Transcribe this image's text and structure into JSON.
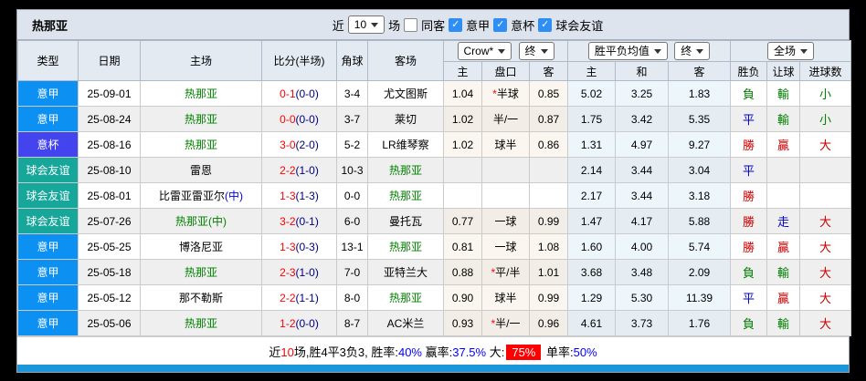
{
  "window": {
    "title": "热那亚"
  },
  "toolbar": {
    "recent_label": "近",
    "recent_value": "10",
    "matches_label": "场",
    "same_away_label": "同客",
    "same_away_checked": false,
    "filters": [
      {
        "label": "意甲",
        "checked": true
      },
      {
        "label": "意杯",
        "checked": true
      },
      {
        "label": "球会友谊",
        "checked": true
      }
    ]
  },
  "selects": {
    "bookmaker": "Crow*",
    "odds_time": "终",
    "avg_type": "胜平负均值",
    "avg_time": "终",
    "scope": "全场"
  },
  "columns": {
    "type": "类型",
    "date": "日期",
    "home": "主场",
    "score": "比分(半场)",
    "corner": "角球",
    "away": "客场",
    "o_home": "主",
    "o_line": "盘口",
    "o_away": "客",
    "avg_home": "主",
    "avg_draw": "和",
    "avg_away": "客",
    "result": "胜负",
    "handicap": "让球",
    "goals": "进球数"
  },
  "league_colors": {
    "serieA": "#0c90f2",
    "coppa": "#4444ee",
    "friendly": "#16a79a"
  },
  "result_colors": {
    "勝": "#cc0000",
    "贏": "#cc0000",
    "大": "#cc0000",
    "平": "#0000cc",
    "走": "#0000cc",
    "負": "#008000",
    "輸": "#008000",
    "小": "#008000"
  },
  "rows": [
    {
      "league": "意甲",
      "lkey": "serieA",
      "date": "25-09-01",
      "home": {
        "n": "热那亚",
        "m": "",
        "nc": "#008000",
        "mc": "#008000"
      },
      "score": {
        "ft": "0-1",
        "ht": "(0-0)"
      },
      "corner": "3-4",
      "away": {
        "n": "尤文图斯",
        "m": "",
        "nc": "#000000",
        "mc": "#000000"
      },
      "o1": "1.04",
      "line": {
        "star": true,
        "t": "半球"
      },
      "o2": "0.85",
      "a1": "5.02",
      "a2": "3.25",
      "a3": "1.83",
      "r1": "負",
      "r2": "輸",
      "r3": "小"
    },
    {
      "league": "意甲",
      "lkey": "serieA",
      "date": "25-08-24",
      "home": {
        "n": "热那亚",
        "m": "",
        "nc": "#008000",
        "mc": "#008000"
      },
      "score": {
        "ft": "0-0",
        "ht": "(0-0)"
      },
      "corner": "3-7",
      "away": {
        "n": "莱切",
        "m": "",
        "nc": "#000000",
        "mc": "#000000"
      },
      "o1": "1.02",
      "line": {
        "star": false,
        "t": "半/一"
      },
      "o2": "0.87",
      "a1": "1.75",
      "a2": "3.42",
      "a3": "5.35",
      "r1": "平",
      "r2": "輸",
      "r3": "小"
    },
    {
      "league": "意杯",
      "lkey": "coppa",
      "date": "25-08-16",
      "home": {
        "n": "热那亚",
        "m": "",
        "nc": "#008000",
        "mc": "#008000"
      },
      "score": {
        "ft": "3-0",
        "ht": "(2-0)"
      },
      "corner": "5-2",
      "away": {
        "n": "LR维琴察",
        "m": "",
        "nc": "#000000",
        "mc": "#000000"
      },
      "o1": "1.02",
      "line": {
        "star": false,
        "t": "球半"
      },
      "o2": "0.86",
      "a1": "1.31",
      "a2": "4.97",
      "a3": "9.27",
      "r1": "勝",
      "r2": "贏",
      "r3": "大"
    },
    {
      "league": "球会友谊",
      "lkey": "friendly",
      "date": "25-08-10",
      "home": {
        "n": "雷恩",
        "m": "",
        "nc": "#000000",
        "mc": "#000000"
      },
      "score": {
        "ft": "2-2",
        "ht": "(1-0)"
      },
      "corner": "10-3",
      "away": {
        "n": "热那亚",
        "m": "",
        "nc": "#008000",
        "mc": "#008000"
      },
      "o1": "",
      "line": {
        "star": false,
        "t": ""
      },
      "o2": "",
      "a1": "2.14",
      "a2": "3.44",
      "a3": "3.04",
      "r1": "平",
      "r2": "",
      "r3": ""
    },
    {
      "league": "球会友谊",
      "lkey": "friendly",
      "date": "25-08-01",
      "home": {
        "n": "比雷亚雷亚尔",
        "m": "(中)",
        "nc": "#000000",
        "mc": "#0000ee"
      },
      "score": {
        "ft": "1-3",
        "ht": "(1-3)"
      },
      "corner": "0-0",
      "away": {
        "n": "热那亚",
        "m": "",
        "nc": "#008000",
        "mc": "#008000"
      },
      "o1": "",
      "line": {
        "star": false,
        "t": ""
      },
      "o2": "",
      "a1": "2.17",
      "a2": "3.44",
      "a3": "3.18",
      "r1": "勝",
      "r2": "",
      "r3": ""
    },
    {
      "league": "球会友谊",
      "lkey": "friendly",
      "date": "25-07-26",
      "home": {
        "n": "热那亚",
        "m": "(中)",
        "nc": "#008000",
        "mc": "#008000"
      },
      "score": {
        "ft": "3-2",
        "ht": "(0-1)"
      },
      "corner": "6-0",
      "away": {
        "n": "曼托瓦",
        "m": "",
        "nc": "#000000",
        "mc": "#000000"
      },
      "o1": "0.77",
      "line": {
        "star": false,
        "t": "一球"
      },
      "o2": "0.99",
      "a1": "1.47",
      "a2": "4.17",
      "a3": "5.88",
      "r1": "勝",
      "r2": "走",
      "r3": "大"
    },
    {
      "league": "意甲",
      "lkey": "serieA",
      "date": "25-05-25",
      "home": {
        "n": "博洛尼亚",
        "m": "",
        "nc": "#000000",
        "mc": "#000000"
      },
      "score": {
        "ft": "1-3",
        "ht": "(0-3)"
      },
      "corner": "13-1",
      "away": {
        "n": "热那亚",
        "m": "",
        "nc": "#008000",
        "mc": "#008000"
      },
      "o1": "0.81",
      "line": {
        "star": false,
        "t": "一球"
      },
      "o2": "1.08",
      "a1": "1.60",
      "a2": "4.00",
      "a3": "5.74",
      "r1": "勝",
      "r2": "贏",
      "r3": "大"
    },
    {
      "league": "意甲",
      "lkey": "serieA",
      "date": "25-05-18",
      "home": {
        "n": "热那亚",
        "m": "",
        "nc": "#008000",
        "mc": "#008000"
      },
      "score": {
        "ft": "2-3",
        "ht": "(1-0)"
      },
      "corner": "7-0",
      "away": {
        "n": "亚特兰大",
        "m": "",
        "nc": "#000000",
        "mc": "#000000"
      },
      "o1": "0.88",
      "line": {
        "star": true,
        "t": "平/半"
      },
      "o2": "1.01",
      "a1": "3.68",
      "a2": "3.48",
      "a3": "2.09",
      "r1": "負",
      "r2": "輸",
      "r3": "大"
    },
    {
      "league": "意甲",
      "lkey": "serieA",
      "date": "25-05-12",
      "home": {
        "n": "那不勒斯",
        "m": "",
        "nc": "#000000",
        "mc": "#000000"
      },
      "score": {
        "ft": "2-2",
        "ht": "(1-1)"
      },
      "corner": "8-0",
      "away": {
        "n": "热那亚",
        "m": "",
        "nc": "#008000",
        "mc": "#008000"
      },
      "o1": "0.90",
      "line": {
        "star": false,
        "t": "球半"
      },
      "o2": "0.99",
      "a1": "1.29",
      "a2": "5.30",
      "a3": "11.39",
      "r1": "平",
      "r2": "贏",
      "r3": "大"
    },
    {
      "league": "意甲",
      "lkey": "serieA",
      "date": "25-05-06",
      "home": {
        "n": "热那亚",
        "m": "",
        "nc": "#008000",
        "mc": "#008000"
      },
      "score": {
        "ft": "1-2",
        "ht": "(0-0)"
      },
      "corner": "8-7",
      "away": {
        "n": "AC米兰",
        "m": "",
        "nc": "#000000",
        "mc": "#000000"
      },
      "o1": "0.93",
      "line": {
        "star": true,
        "t": "半/一"
      },
      "o2": "0.96",
      "a1": "4.61",
      "a2": "3.73",
      "a3": "1.76",
      "r1": "負",
      "r2": "輸",
      "r3": "大"
    }
  ],
  "footer": {
    "segments": [
      {
        "t": "近",
        "c": "#000000"
      },
      {
        "t": "10",
        "c": "#ff0000"
      },
      {
        "t": "场,胜4平3负3, 胜率:",
        "c": "#000000"
      },
      {
        "t": "40%",
        "c": "#0000ff"
      },
      {
        "t": " 赢率:",
        "c": "#000000"
      },
      {
        "t": "37.5%",
        "c": "#0000ff"
      },
      {
        "t": " 大:",
        "c": "#000000"
      },
      {
        "t": "75%",
        "c": "#ffffff",
        "bg": "#ff0000"
      },
      {
        "t": " 单率:",
        "c": "#000000"
      },
      {
        "t": "50%",
        "c": "#0000ff"
      }
    ]
  }
}
